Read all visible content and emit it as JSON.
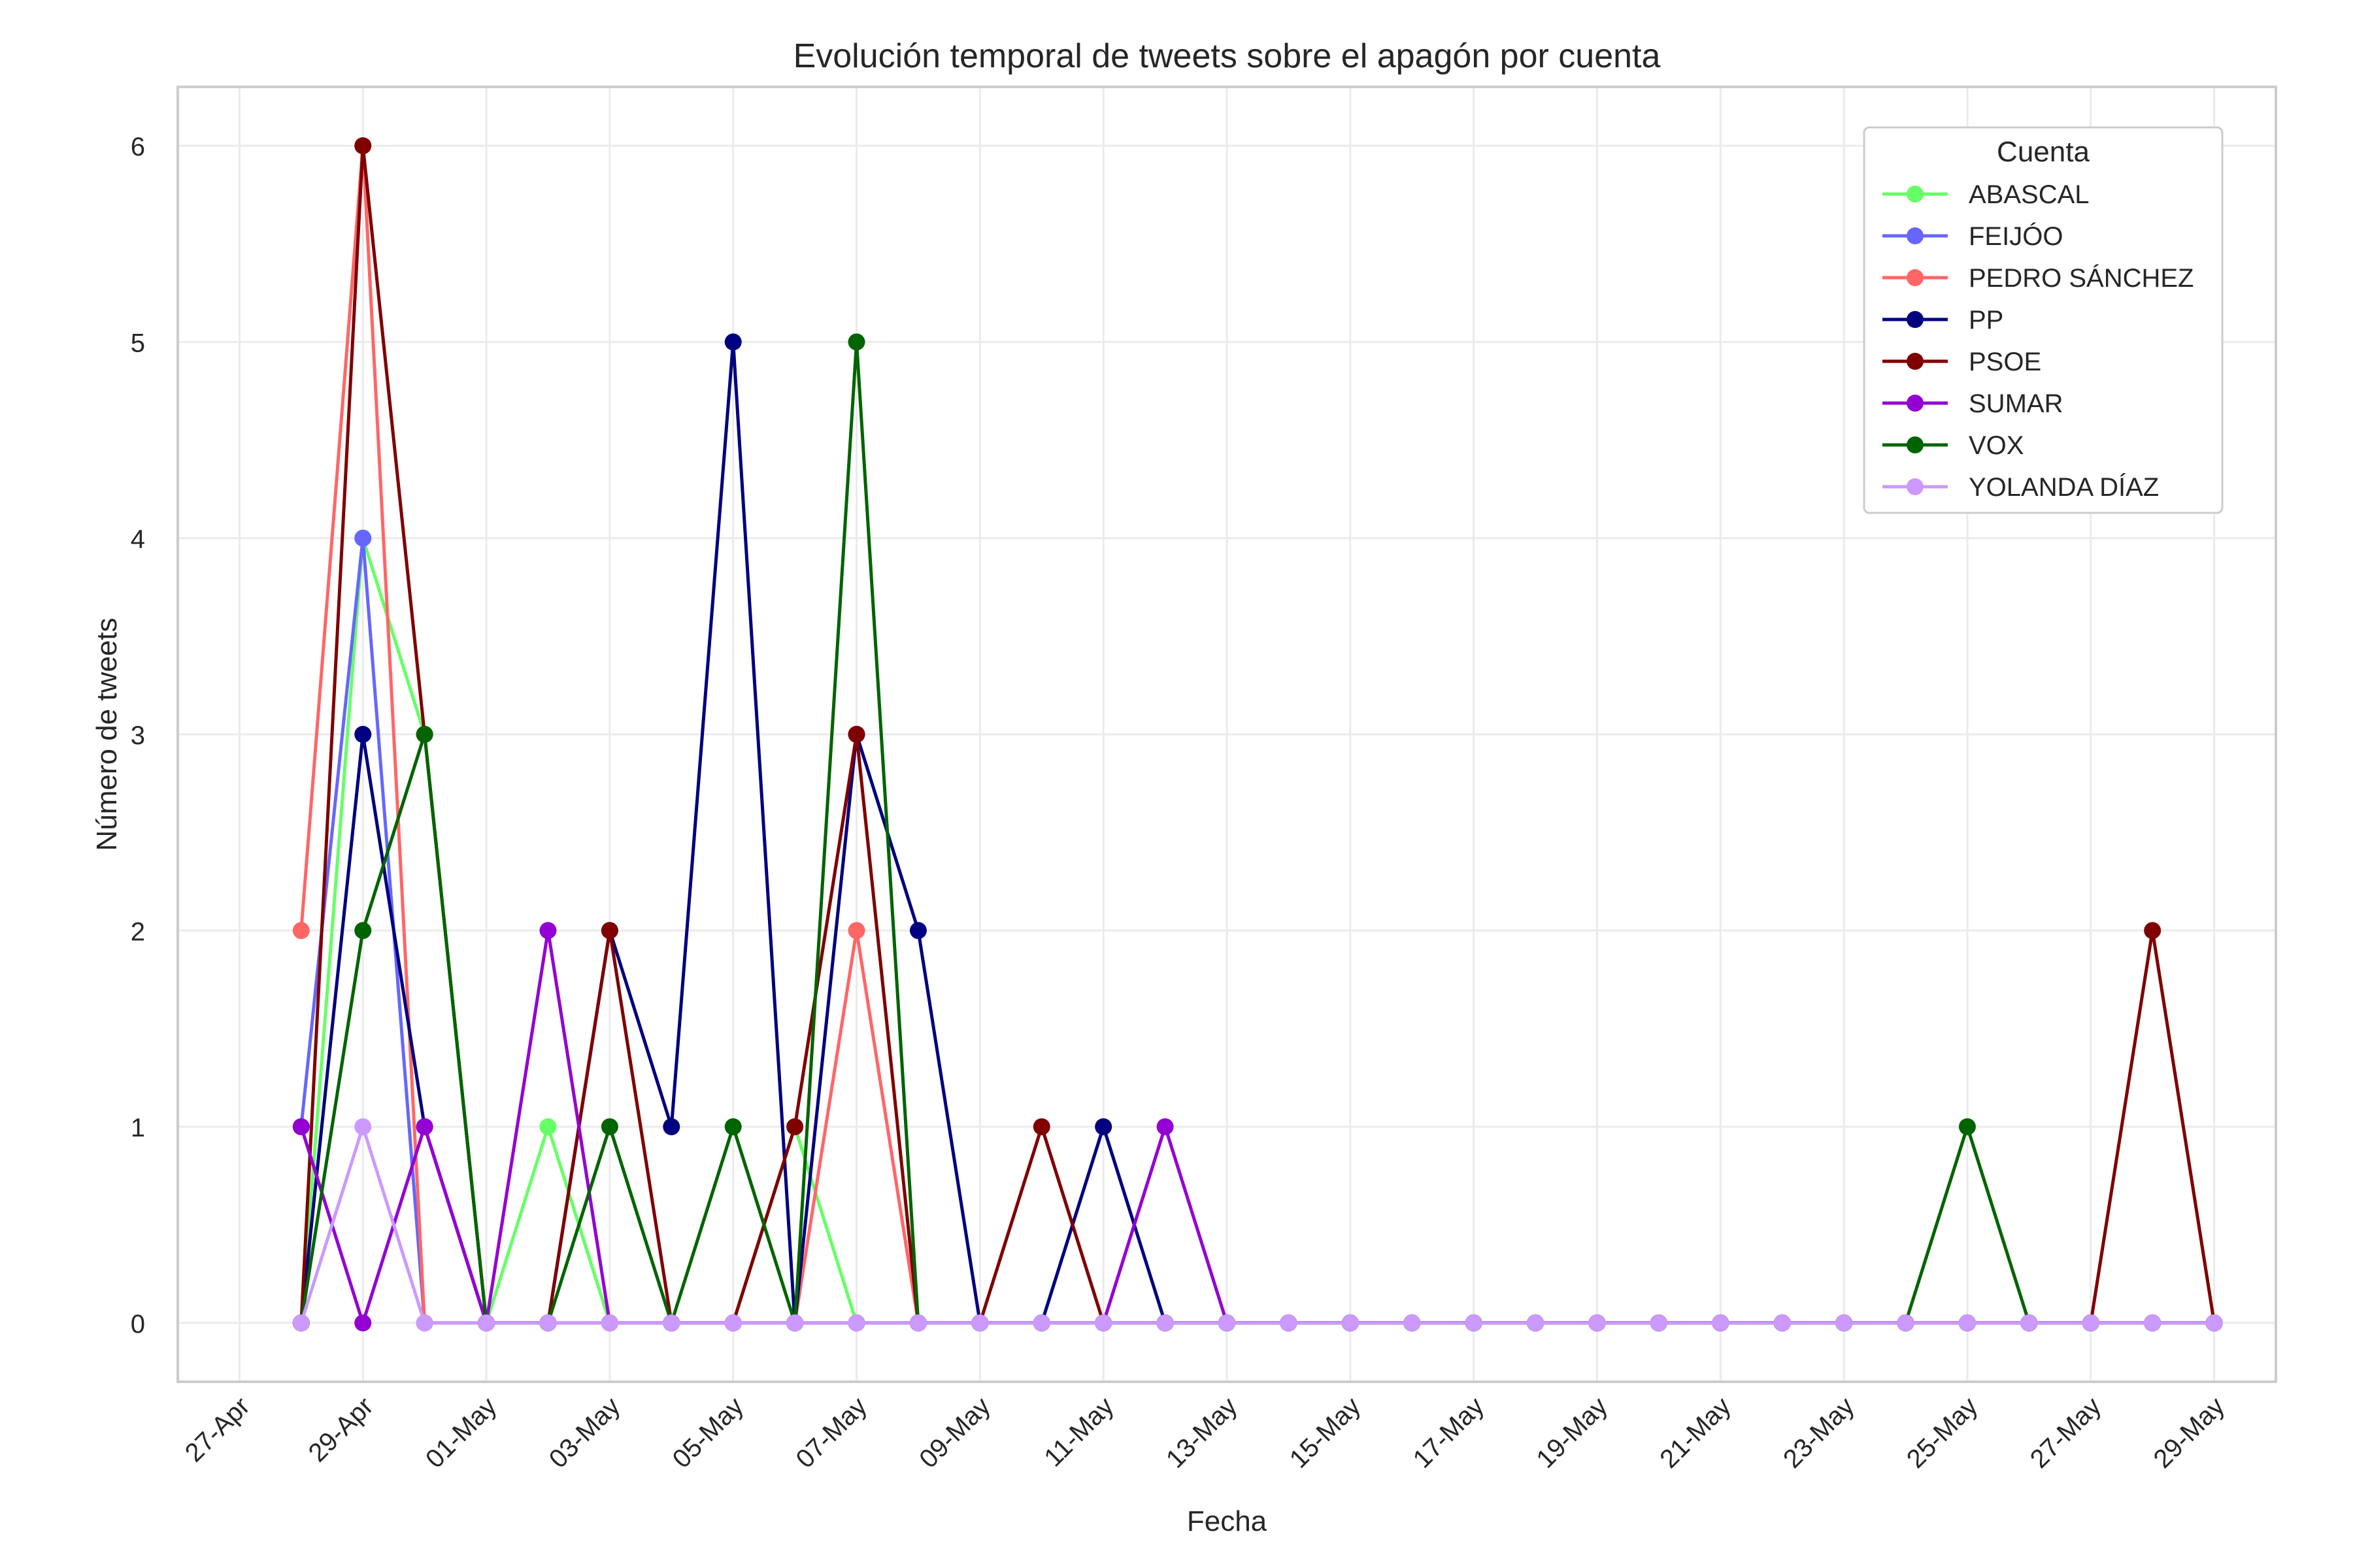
{
  "chart_data": {
    "type": "line",
    "title": "Evolución temporal de tweets sobre el apagón por cuenta",
    "xlabel": "Fecha",
    "ylabel": "Número de tweets",
    "legend_title": "Cuenta",
    "legend_position": "top-right",
    "grid": true,
    "ylim": [
      -0.3,
      6.3
    ],
    "xlim": [
      "2025-04-26",
      "2025-05-30"
    ],
    "yticks": [
      "0",
      "1",
      "2",
      "3",
      "4",
      "5",
      "6"
    ],
    "xticks": [
      {
        "date": "2025-04-27",
        "label": "27-Apr"
      },
      {
        "date": "2025-04-29",
        "label": "29-Apr"
      },
      {
        "date": "2025-05-01",
        "label": "01-May"
      },
      {
        "date": "2025-05-03",
        "label": "03-May"
      },
      {
        "date": "2025-05-05",
        "label": "05-May"
      },
      {
        "date": "2025-05-07",
        "label": "07-May"
      },
      {
        "date": "2025-05-09",
        "label": "09-May"
      },
      {
        "date": "2025-05-11",
        "label": "11-May"
      },
      {
        "date": "2025-05-13",
        "label": "13-May"
      },
      {
        "date": "2025-05-15",
        "label": "15-May"
      },
      {
        "date": "2025-05-17",
        "label": "17-May"
      },
      {
        "date": "2025-05-19",
        "label": "19-May"
      },
      {
        "date": "2025-05-21",
        "label": "21-May"
      },
      {
        "date": "2025-05-23",
        "label": "23-May"
      },
      {
        "date": "2025-05-25",
        "label": "25-May"
      },
      {
        "date": "2025-05-27",
        "label": "27-May"
      },
      {
        "date": "2025-05-29",
        "label": "29-May"
      }
    ],
    "x": [
      "2025-04-28",
      "2025-04-29",
      "2025-04-30",
      "2025-05-01",
      "2025-05-02",
      "2025-05-03",
      "2025-05-04",
      "2025-05-05",
      "2025-05-06",
      "2025-05-07",
      "2025-05-08",
      "2025-05-09",
      "2025-05-10",
      "2025-05-11",
      "2025-05-12",
      "2025-05-13",
      "2025-05-14",
      "2025-05-15",
      "2025-05-16",
      "2025-05-17",
      "2025-05-18",
      "2025-05-19",
      "2025-05-20",
      "2025-05-21",
      "2025-05-22",
      "2025-05-23",
      "2025-05-24",
      "2025-05-25",
      "2025-05-26",
      "2025-05-27",
      "2025-05-28",
      "2025-05-29"
    ],
    "series": [
      {
        "name": "ABASCAL",
        "color": "#66ff66",
        "values": [
          0,
          4,
          3,
          0,
          1,
          0,
          0,
          0,
          1,
          0,
          0,
          0,
          0,
          0,
          0,
          0,
          0,
          0,
          0,
          0,
          0,
          0,
          0,
          0,
          0,
          0,
          0,
          0,
          0,
          0,
          0,
          0
        ]
      },
      {
        "name": "FEIJÓO",
        "color": "#6666ff",
        "values": [
          1,
          4,
          0,
          0,
          0,
          0,
          0,
          0,
          0,
          0,
          0,
          0,
          0,
          0,
          0,
          0,
          0,
          0,
          0,
          0,
          0,
          0,
          0,
          0,
          0,
          0,
          0,
          0,
          0,
          0,
          0,
          0
        ]
      },
      {
        "name": "PEDRO SÁNCHEZ",
        "color": "#ff6666",
        "values": [
          2,
          6,
          0,
          0,
          0,
          0,
          0,
          0,
          0,
          2,
          0,
          0,
          0,
          0,
          0,
          0,
          0,
          0,
          0,
          0,
          0,
          0,
          0,
          0,
          0,
          0,
          0,
          0,
          0,
          0,
          0,
          0
        ]
      },
      {
        "name": "PP",
        "color": "#000080",
        "values": [
          0,
          3,
          1,
          0,
          0,
          2,
          1,
          5,
          0,
          3,
          2,
          0,
          0,
          1,
          0,
          0,
          0,
          0,
          0,
          0,
          0,
          0,
          0,
          0,
          0,
          0,
          0,
          0,
          0,
          0,
          0,
          0
        ]
      },
      {
        "name": "PSOE",
        "color": "#800000",
        "values": [
          0,
          6,
          3,
          0,
          0,
          2,
          0,
          0,
          1,
          3,
          0,
          0,
          1,
          0,
          0,
          0,
          0,
          0,
          0,
          0,
          0,
          0,
          0,
          0,
          0,
          0,
          0,
          0,
          0,
          0,
          2,
          0
        ]
      },
      {
        "name": "SUMAR",
        "color": "#9400d3",
        "values": [
          1,
          0,
          1,
          0,
          2,
          0,
          0,
          0,
          0,
          0,
          0,
          0,
          0,
          0,
          1,
          0,
          0,
          0,
          0,
          0,
          0,
          0,
          0,
          0,
          0,
          0,
          0,
          0,
          0,
          0,
          0,
          0
        ]
      },
      {
        "name": "VOX",
        "color": "#006400",
        "values": [
          0,
          2,
          3,
          0,
          0,
          1,
          0,
          1,
          0,
          5,
          0,
          0,
          0,
          0,
          0,
          0,
          0,
          0,
          0,
          0,
          0,
          0,
          0,
          0,
          0,
          0,
          0,
          1,
          0,
          0,
          0,
          0
        ]
      },
      {
        "name": "YOLANDA DÍAZ",
        "color": "#cc99ff",
        "values": [
          0,
          1,
          0,
          0,
          0,
          0,
          0,
          0,
          0,
          0,
          0,
          0,
          0,
          0,
          0,
          0,
          0,
          0,
          0,
          0,
          0,
          0,
          0,
          0,
          0,
          0,
          0,
          0,
          0,
          0,
          0,
          0
        ]
      }
    ]
  }
}
